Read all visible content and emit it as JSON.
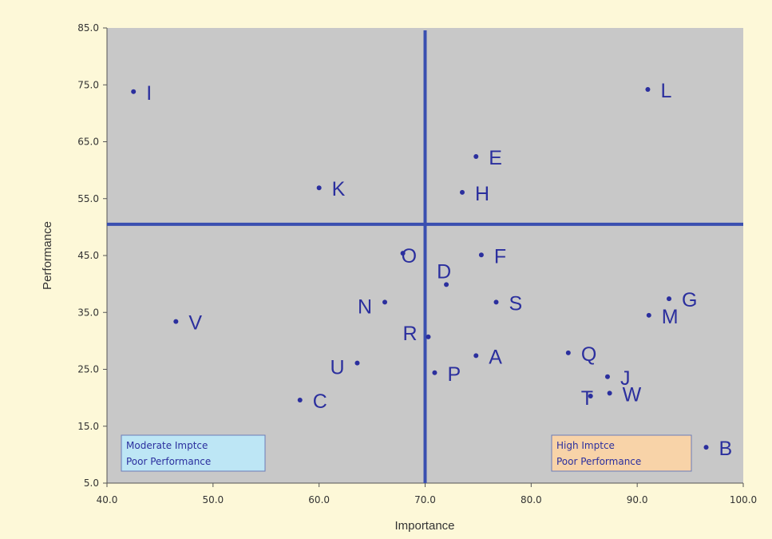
{
  "chart_data": {
    "type": "scatter",
    "xlabel": "Importance",
    "ylabel": "Performance",
    "xlim": [
      40.0,
      100.0
    ],
    "ylim": [
      5.0,
      85.0
    ],
    "x_ticks": [
      "40.0",
      "50.0",
      "60.0",
      "70.0",
      "80.0",
      "90.0",
      "100.0"
    ],
    "y_ticks": [
      "5.0",
      "15.0",
      "25.0",
      "35.0",
      "45.0",
      "55.0",
      "65.0",
      "75.0",
      "85.0"
    ],
    "x_tick_values": [
      40,
      50,
      60,
      70,
      80,
      90,
      100
    ],
    "y_tick_values": [
      5,
      15,
      25,
      35,
      45,
      55,
      65,
      75,
      85
    ],
    "quadrant_lines": {
      "x": 70.0,
      "y": 50.5
    },
    "points": [
      {
        "label": "I",
        "x": 42.5,
        "y": 73.8
      },
      {
        "label": "L",
        "x": 91.0,
        "y": 74.2
      },
      {
        "label": "E",
        "x": 74.8,
        "y": 62.4
      },
      {
        "label": "K",
        "x": 60.0,
        "y": 56.9
      },
      {
        "label": "H",
        "x": 73.5,
        "y": 56.1
      },
      {
        "label": "O",
        "x": 67.9,
        "y": 45.4
      },
      {
        "label": "F",
        "x": 75.3,
        "y": 45.1
      },
      {
        "label": "D",
        "x": 72.0,
        "y": 39.9
      },
      {
        "label": "N",
        "x": 66.2,
        "y": 36.8
      },
      {
        "label": "S",
        "x": 76.7,
        "y": 36.8
      },
      {
        "label": "G",
        "x": 93.0,
        "y": 37.4
      },
      {
        "label": "M",
        "x": 91.1,
        "y": 34.5
      },
      {
        "label": "V",
        "x": 46.5,
        "y": 33.4
      },
      {
        "label": "R",
        "x": 70.3,
        "y": 30.7
      },
      {
        "label": "A",
        "x": 74.8,
        "y": 27.4
      },
      {
        "label": "Q",
        "x": 83.5,
        "y": 27.9
      },
      {
        "label": "U",
        "x": 63.6,
        "y": 26.1
      },
      {
        "label": "J",
        "x": 87.2,
        "y": 23.7
      },
      {
        "label": "P",
        "x": 70.9,
        "y": 24.4
      },
      {
        "label": "T",
        "x": 85.6,
        "y": 20.3
      },
      {
        "label": "W",
        "x": 87.4,
        "y": 20.8
      },
      {
        "label": "C",
        "x": 58.2,
        "y": 19.6
      },
      {
        "label": "B",
        "x": 96.5,
        "y": 11.3
      }
    ],
    "grid": false,
    "legend": "none"
  },
  "notes": {
    "left": {
      "lines": [
        "Moderate Imptce",
        "Poor Performance"
      ],
      "color": "#bde6f5"
    },
    "right": {
      "lines": [
        "High Imptce",
        "Poor Performance"
      ],
      "color": "#f8d3a8"
    }
  },
  "colors": {
    "page_bg": "#fdf8d8",
    "plot_bg": "#c8c8c8",
    "marker": "#2b2f9e",
    "quadrant_line": "#3a4fb0"
  }
}
